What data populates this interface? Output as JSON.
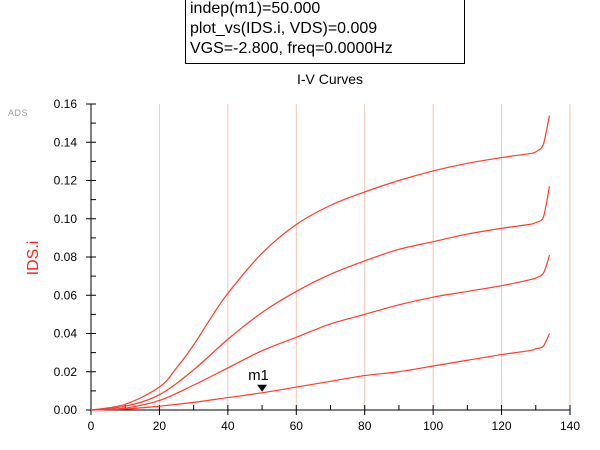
{
  "marker_readout": {
    "line1": "indep(m1)=50.000",
    "line2": "plot_vs(IDS.i, VDS)=0.009",
    "line3": "VGS=-2.800, freq=0.0000Hz"
  },
  "watermark": "ADS",
  "colors": {
    "curve": "#ff3b2f",
    "grid": "#f2c6b0",
    "axis": "#000000",
    "ylabel": "#ff2020"
  },
  "chart_data": {
    "type": "line",
    "title": "I-V Curves",
    "xlabel": "",
    "ylabel": "IDS.i",
    "xlim": [
      0,
      140
    ],
    "ylim": [
      0,
      0.16
    ],
    "x_ticks": [
      0,
      20,
      40,
      60,
      80,
      100,
      120,
      140
    ],
    "y_ticks": [
      0.0,
      0.02,
      0.04,
      0.06,
      0.08,
      0.1,
      0.12,
      0.14,
      0.16
    ],
    "grid": "vertical",
    "series": [
      {
        "x": [
          0,
          10,
          20,
          25,
          30,
          35,
          40,
          50,
          60,
          70,
          80,
          90,
          100,
          110,
          120,
          128,
          130,
          132,
          133,
          134
        ],
        "y": [
          0,
          0.003,
          0.012,
          0.022,
          0.034,
          0.048,
          0.061,
          0.082,
          0.097,
          0.107,
          0.114,
          0.12,
          0.125,
          0.129,
          0.132,
          0.134,
          0.135,
          0.138,
          0.145,
          0.154
        ]
      },
      {
        "x": [
          0,
          10,
          20,
          30,
          40,
          50,
          60,
          70,
          80,
          90,
          100,
          110,
          120,
          128,
          130,
          132,
          133,
          134
        ],
        "y": [
          0,
          0.002,
          0.008,
          0.021,
          0.037,
          0.051,
          0.062,
          0.071,
          0.078,
          0.084,
          0.088,
          0.092,
          0.095,
          0.097,
          0.098,
          0.1,
          0.107,
          0.117
        ]
      },
      {
        "x": [
          0,
          10,
          20,
          30,
          40,
          50,
          60,
          70,
          80,
          90,
          100,
          110,
          120,
          128,
          130,
          132,
          133,
          134
        ],
        "y": [
          0,
          0.001,
          0.005,
          0.013,
          0.022,
          0.031,
          0.038,
          0.045,
          0.05,
          0.055,
          0.059,
          0.062,
          0.065,
          0.068,
          0.069,
          0.071,
          0.075,
          0.081
        ]
      },
      {
        "x": [
          0,
          10,
          20,
          30,
          40,
          50,
          60,
          70,
          80,
          90,
          100,
          110,
          120,
          128,
          130,
          132,
          133,
          134
        ],
        "y": [
          0,
          0.0005,
          0.002,
          0.004,
          0.0065,
          0.009,
          0.012,
          0.015,
          0.018,
          0.02,
          0.023,
          0.026,
          0.029,
          0.031,
          0.032,
          0.033,
          0.036,
          0.04
        ]
      }
    ],
    "annotations": [
      {
        "label": "m1",
        "x": 50,
        "y": 0.009
      }
    ]
  }
}
